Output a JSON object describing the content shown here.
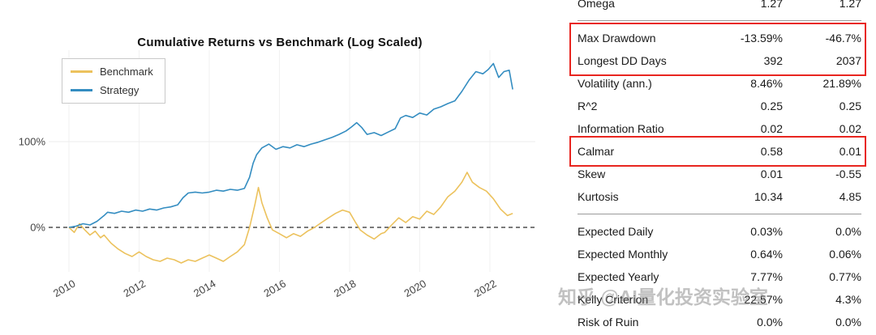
{
  "watermark": "知乎 @AI量化投资实验室",
  "chart_data": {
    "type": "line",
    "title": "Cumulative Returns vs Benchmark (Log Scaled)",
    "y_scale": "log2(1 + r)",
    "x_range": [
      2009.6,
      2023.0
    ],
    "x_ticks": [
      2010,
      2012,
      2014,
      2016,
      2018,
      2020,
      2022
    ],
    "y_ticks": [
      {
        "value": 0,
        "label": "0%"
      },
      {
        "value": 100,
        "label": "100%"
      }
    ],
    "zero_line_dashed": true,
    "grid": "faint",
    "legend_position": "top-left",
    "series": [
      {
        "name": "Benchmark",
        "color": "#ecc25d",
        "x": [
          2010.0,
          2010.15,
          2010.3,
          2010.45,
          2010.6,
          2010.75,
          2010.9,
          2011.0,
          2011.2,
          2011.4,
          2011.6,
          2011.8,
          2012.0,
          2012.2,
          2012.4,
          2012.6,
          2012.8,
          2013.0,
          2013.2,
          2013.4,
          2013.6,
          2013.8,
          2014.0,
          2014.2,
          2014.4,
          2014.6,
          2014.8,
          2015.0,
          2015.15,
          2015.3,
          2015.4,
          2015.5,
          2015.65,
          2015.8,
          2016.0,
          2016.2,
          2016.4,
          2016.6,
          2016.8,
          2017.0,
          2017.2,
          2017.4,
          2017.6,
          2017.8,
          2018.0,
          2018.15,
          2018.3,
          2018.5,
          2018.7,
          2018.9,
          2019.0,
          2019.2,
          2019.4,
          2019.6,
          2019.8,
          2020.0,
          2020.2,
          2020.4,
          2020.6,
          2020.8,
          2021.0,
          2021.2,
          2021.35,
          2021.5,
          2021.7,
          2021.9,
          2022.1,
          2022.3,
          2022.5,
          2022.65
        ],
        "y": [
          0,
          -4,
          3,
          -2,
          -6,
          -3,
          -8,
          -6,
          -12,
          -16,
          -19,
          -21,
          -18,
          -21,
          -23,
          -24,
          -22,
          -23,
          -25,
          -23,
          -24,
          -22,
          -20,
          -22,
          -24,
          -21,
          -18,
          -13,
          0,
          20,
          38,
          22,
          8,
          -2,
          -5,
          -8,
          -5,
          -7,
          -3,
          0,
          4,
          8,
          12,
          15,
          13,
          5,
          -2,
          -6,
          -9,
          -5,
          -4,
          2,
          8,
          4,
          9,
          7,
          14,
          11,
          18,
          28,
          34,
          44,
          56,
          44,
          38,
          34,
          26,
          16,
          10,
          12
        ]
      },
      {
        "name": "Strategy",
        "color": "#348dc1",
        "x": [
          2010.0,
          2010.2,
          2010.4,
          2010.6,
          2010.8,
          2011.0,
          2011.1,
          2011.3,
          2011.5,
          2011.7,
          2011.9,
          2012.1,
          2012.3,
          2012.5,
          2012.7,
          2012.9,
          2013.1,
          2013.25,
          2013.4,
          2013.6,
          2013.8,
          2014.0,
          2014.2,
          2014.4,
          2014.6,
          2014.8,
          2015.0,
          2015.15,
          2015.25,
          2015.35,
          2015.5,
          2015.7,
          2015.9,
          2016.1,
          2016.3,
          2016.5,
          2016.7,
          2016.9,
          2017.1,
          2017.3,
          2017.5,
          2017.7,
          2017.9,
          2018.05,
          2018.2,
          2018.35,
          2018.5,
          2018.7,
          2018.9,
          2019.1,
          2019.3,
          2019.45,
          2019.6,
          2019.8,
          2020.0,
          2020.2,
          2020.4,
          2020.6,
          2020.8,
          2021.0,
          2021.2,
          2021.4,
          2021.6,
          2021.8,
          2021.95,
          2022.1,
          2022.25,
          2022.4,
          2022.55,
          2022.65
        ],
        "y": [
          0,
          1,
          3,
          2,
          5,
          10,
          13,
          12,
          14,
          13,
          15,
          14,
          16,
          15,
          17,
          18,
          20,
          27,
          32,
          33,
          32,
          33,
          35,
          34,
          36,
          35,
          37,
          50,
          68,
          80,
          90,
          96,
          88,
          92,
          90,
          95,
          92,
          96,
          99,
          103,
          107,
          112,
          118,
          125,
          133,
          124,
          112,
          115,
          110,
          116,
          122,
          142,
          147,
          143,
          152,
          148,
          160,
          165,
          172,
          178,
          200,
          228,
          252,
          246,
          258,
          276,
          236,
          252,
          256,
          205
        ]
      }
    ]
  },
  "metrics_table": {
    "rows": [
      {
        "label": "Omega",
        "col1": "1.27",
        "col2": "1.27",
        "separator_after": true
      },
      {
        "label": "Max Drawdown",
        "col1": "-13.59%",
        "col2": "-46.7%",
        "box": "drawdown"
      },
      {
        "label": "Longest DD Days",
        "col1": "392",
        "col2": "2037",
        "box": "drawdown"
      },
      {
        "label": "Volatility (ann.)",
        "col1": "8.46%",
        "col2": "21.89%"
      },
      {
        "label": "R^2",
        "col1": "0.25",
        "col2": "0.25"
      },
      {
        "label": "Information Ratio",
        "col1": "0.02",
        "col2": "0.02"
      },
      {
        "label": "Calmar",
        "col1": "0.58",
        "col2": "0.01",
        "box": "calmar"
      },
      {
        "label": "Skew",
        "col1": "0.01",
        "col2": "-0.55"
      },
      {
        "label": "Kurtosis",
        "col1": "10.34",
        "col2": "4.85",
        "separator_after": true
      },
      {
        "label": "Expected Daily",
        "col1": "0.03%",
        "col2": "0.0%"
      },
      {
        "label": "Expected Monthly",
        "col1": "0.64%",
        "col2": "0.06%"
      },
      {
        "label": "Expected Yearly",
        "col1": "7.77%",
        "col2": "0.77%"
      },
      {
        "label": "Kelly Criterion",
        "col1": "22.57%",
        "col2": "4.3%"
      },
      {
        "label": "Risk of Ruin",
        "col1": "0.0%",
        "col2": "0.0%"
      }
    ],
    "highlight_color": "#e8251f"
  }
}
